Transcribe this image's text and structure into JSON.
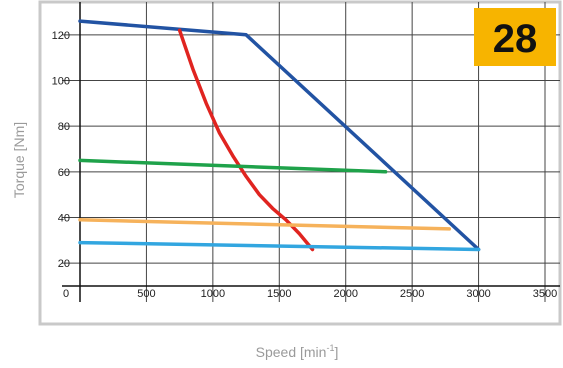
{
  "badge": {
    "label": "28",
    "color": "#f7b400"
  },
  "colors": {
    "frame": "#c9c9c9",
    "grid": "#444444",
    "axis": "#111111"
  },
  "chart_data": {
    "type": "line",
    "xlabel": "Speed [min",
    "xlabel_sup": "-1",
    "xlabel_close": "]",
    "ylabel": "Torque [Nm]",
    "xlim": [
      0,
      3500
    ],
    "ylim": [
      10,
      130
    ],
    "x_ticks": [
      0,
      500,
      1000,
      1500,
      2000,
      2500,
      3000,
      3500
    ],
    "y_ticks": [
      20,
      40,
      60,
      80,
      100,
      120
    ],
    "grid": true,
    "legend": "none",
    "series": [
      {
        "color": "#2253a3",
        "points": [
          [
            0,
            126
          ],
          [
            1250,
            120
          ],
          [
            3000,
            26
          ]
        ]
      },
      {
        "color": "#e02420",
        "points": [
          [
            750,
            122
          ],
          [
            850,
            105
          ],
          [
            950,
            90
          ],
          [
            1050,
            77
          ],
          [
            1150,
            67
          ],
          [
            1250,
            58
          ],
          [
            1350,
            50
          ],
          [
            1450,
            44
          ],
          [
            1550,
            39
          ],
          [
            1650,
            33
          ],
          [
            1750,
            26
          ]
        ]
      },
      {
        "color": "#1fa24a",
        "points": [
          [
            0,
            65
          ],
          [
            2300,
            60
          ]
        ]
      },
      {
        "color": "#f6b25b",
        "points": [
          [
            0,
            39
          ],
          [
            2780,
            35
          ]
        ]
      },
      {
        "color": "#32a6e0",
        "points": [
          [
            0,
            29
          ],
          [
            3000,
            26
          ]
        ]
      }
    ]
  }
}
